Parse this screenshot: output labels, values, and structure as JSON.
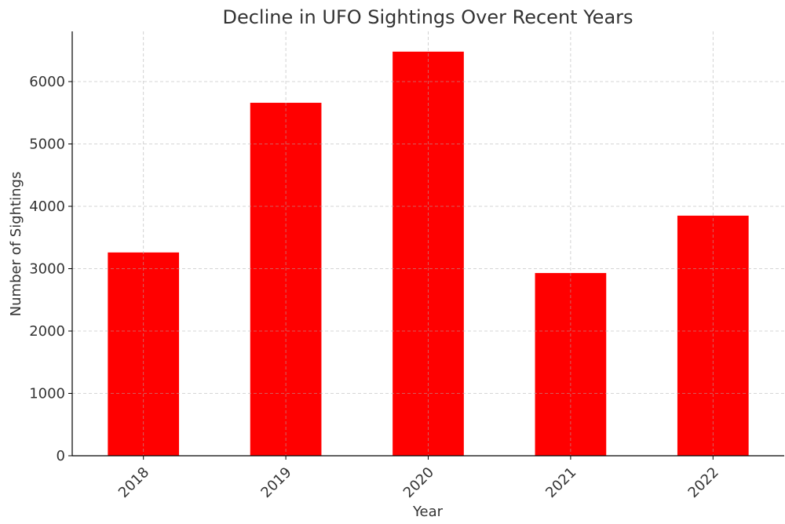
{
  "chart_data": {
    "type": "bar",
    "title": "Decline in UFO Sightings Over Recent Years",
    "xlabel": "Year",
    "ylabel": "Number of Sightings",
    "categories": [
      "2018",
      "2019",
      "2020",
      "2021",
      "2022"
    ],
    "values": [
      3260,
      5660,
      6480,
      2930,
      3850
    ],
    "ylim": [
      0,
      6805
    ],
    "yticks": [
      0,
      1000,
      2000,
      3000,
      4000,
      5000,
      6000
    ],
    "grid": true,
    "bar_color": "#ff0000",
    "legend": "none"
  }
}
